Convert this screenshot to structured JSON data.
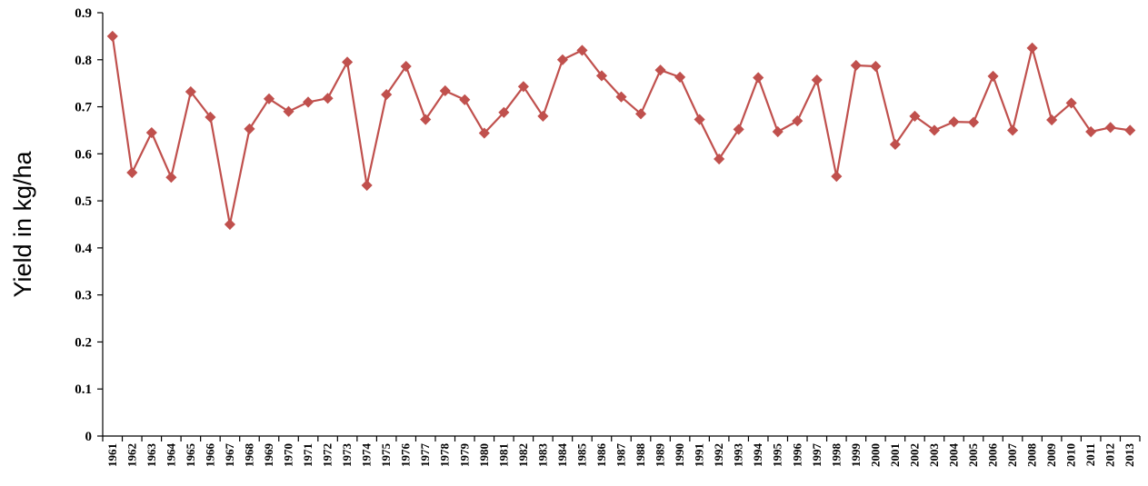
{
  "chart_data": {
    "type": "line",
    "ylabel": "Yield in kg/ha",
    "xlabel": "",
    "ylim": [
      0,
      0.9
    ],
    "y_ticks": [
      "0",
      "0.1",
      "0.2",
      "0.3",
      "0.4",
      "0.5",
      "0.6",
      "0.7",
      "0.8",
      "0.9"
    ],
    "grid": false,
    "legend": "none",
    "colors": {
      "line": "#c0504d",
      "marker": "#c0504d",
      "axis": "#000000"
    },
    "marker": "diamond",
    "categories": [
      "1961",
      "1962",
      "1963",
      "1964",
      "1965",
      "1966",
      "1967",
      "1968",
      "1969",
      "1970",
      "1971",
      "1972",
      "1973",
      "1974",
      "1975",
      "1976",
      "1977",
      "1978",
      "1979",
      "1980",
      "1981",
      "1982",
      "1983",
      "1984",
      "1985",
      "1986",
      "1987",
      "1988",
      "1989",
      "1990",
      "1991",
      "1992",
      "1993",
      "1994",
      "1995",
      "1996",
      "1997",
      "1998",
      "1999",
      "2000",
      "2001",
      "2002",
      "2003",
      "2004",
      "2005",
      "2006",
      "2007",
      "2008",
      "2009",
      "2010",
      "2011",
      "2012",
      "2013"
    ],
    "series": [
      {
        "values": [
          0.85,
          0.56,
          0.645,
          0.55,
          0.732,
          0.678,
          0.45,
          0.653,
          0.717,
          0.69,
          0.71,
          0.718,
          0.795,
          0.533,
          0.726,
          0.786,
          0.673,
          0.734,
          0.715,
          0.644,
          0.688,
          0.743,
          0.68,
          0.8,
          0.82,
          0.766,
          0.721,
          0.685,
          0.778,
          0.763,
          0.673,
          0.589,
          0.652,
          0.762,
          0.647,
          0.67,
          0.757,
          0.552,
          0.788,
          0.786,
          0.62,
          0.68,
          0.65,
          0.668,
          0.667,
          0.765,
          0.65,
          0.825,
          0.672,
          0.708,
          0.647,
          0.656,
          0.65
        ]
      }
    ]
  }
}
